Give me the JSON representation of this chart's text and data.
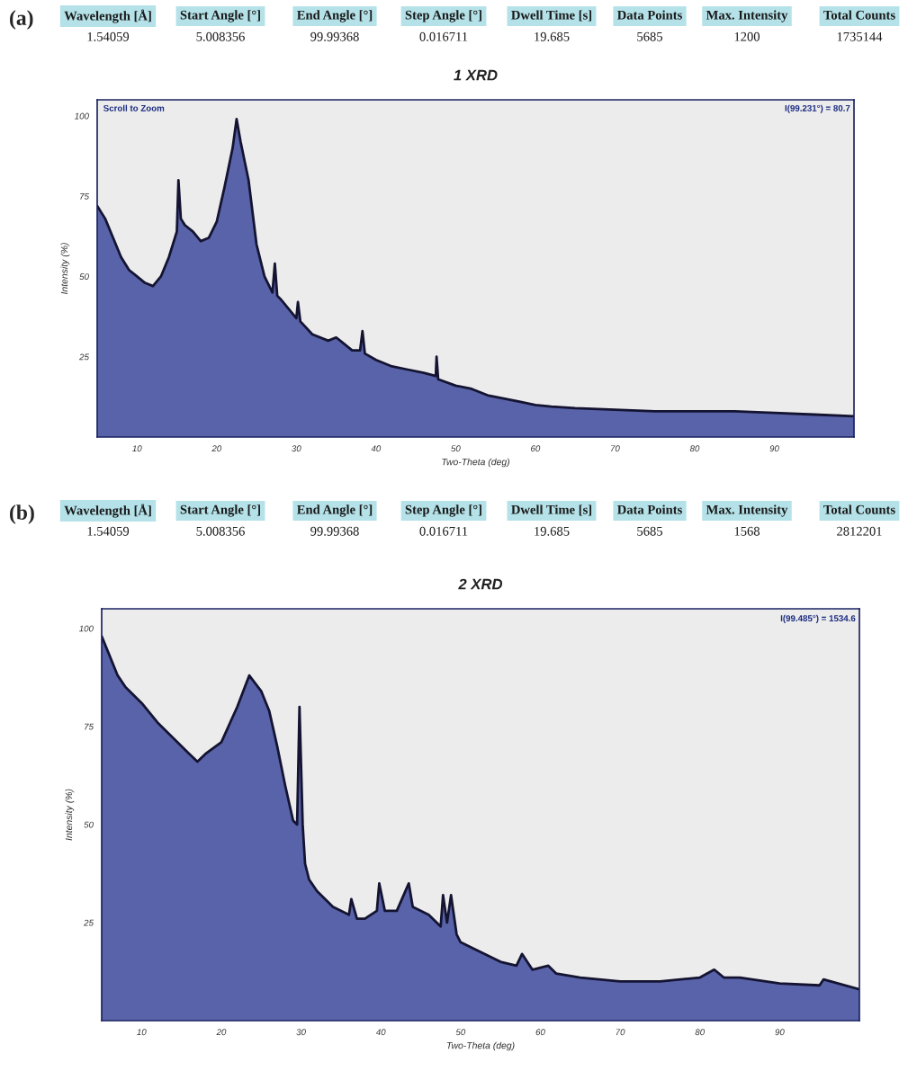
{
  "chart_data": [
    {
      "type": "area",
      "title": "1 XRD",
      "xlabel": "Two-Theta (deg)",
      "ylabel": "Intensity (%)",
      "annotations": [
        "(a)",
        "Wavelength [Å]",
        "Start Angle [°]",
        "End Angle [°]",
        "Step Angle [°]",
        "Dwell Time [s]",
        "Data Points",
        "Max. Intensity",
        "Total Counts",
        "1.54059",
        "5.008356",
        "99.99368",
        "0.016711",
        "19.685",
        "5685",
        "1200",
        "1735144",
        "Scroll to Zoom",
        "I(99.231°) = 80.7"
      ],
      "x": [
        5,
        6,
        7,
        8,
        9,
        10,
        11,
        12,
        13,
        14,
        15,
        15.2,
        15.5,
        16,
        17,
        18,
        19,
        20,
        21,
        22,
        22.5,
        23,
        24,
        25,
        26,
        27,
        27.3,
        27.6,
        28,
        29,
        30,
        30.2,
        30.5,
        32,
        34,
        35,
        36,
        37,
        38,
        38.3,
        38.6,
        40,
        42,
        44,
        46,
        47.5,
        47.6,
        47.8,
        50,
        52,
        54,
        56,
        58,
        60,
        62,
        65,
        70,
        75,
        80,
        85,
        90,
        95,
        100
      ],
      "series": [
        {
          "color": "#283593",
          "values": [
            72,
            68,
            62,
            56,
            52,
            50,
            48,
            47,
            50,
            56,
            64,
            80,
            68,
            66,
            64,
            61,
            62,
            67,
            78,
            90,
            99,
            92,
            80,
            60,
            50,
            45,
            54,
            44,
            43,
            40,
            37,
            42,
            36,
            32,
            30,
            31,
            29,
            27,
            27,
            33,
            26,
            24,
            22,
            21,
            20,
            19,
            25,
            18,
            16,
            15,
            13,
            12,
            11,
            10,
            9.5,
            9,
            8.5,
            8,
            8,
            8,
            7.5,
            7,
            6.5
          ]
        }
      ],
      "xlim": [
        5,
        100
      ],
      "ylim": [
        0,
        105
      ],
      "xticks": [
        10,
        20,
        30,
        40,
        50,
        60,
        70,
        80,
        90
      ],
      "yticks": [
        25,
        50,
        75,
        100
      ],
      "grid": false,
      "legend": false
    },
    {
      "type": "area",
      "title": "2 XRD",
      "xlabel": "Two-Theta (deg)",
      "ylabel": "Intensity (%)",
      "annotations": [
        "(b)",
        "Wavelength [Å]",
        "Start Angle [°]",
        "End Angle [°]",
        "Step Angle [°]",
        "Dwell Time [s]",
        "Data Points",
        "Max. Intensity",
        "Total Counts",
        "1.54059",
        "5.008356",
        "99.99368",
        "0.016711",
        "19.685",
        "5685",
        "1568",
        "2812201",
        "I(99.485°) = 1534.6"
      ],
      "x": [
        5,
        6,
        7,
        8,
        10,
        12,
        14,
        16,
        17,
        18,
        20,
        22,
        23.5,
        25,
        26,
        27,
        28,
        29,
        29.5,
        29.8,
        30.2,
        30.5,
        31,
        32,
        34,
        36,
        36.3,
        37,
        38,
        39.5,
        39.8,
        40.5,
        42,
        43.5,
        44,
        46,
        47.5,
        47.8,
        48.3,
        48.8,
        49.5,
        50,
        52,
        55,
        57,
        57.7,
        59,
        61,
        62,
        65,
        70,
        75,
        80,
        81.8,
        83,
        85,
        90,
        95,
        95.5,
        100
      ],
      "series": [
        {
          "color": "#283593",
          "values": [
            98,
            93,
            88,
            85,
            81,
            76,
            72,
            68,
            66,
            68,
            71,
            80,
            88,
            84,
            79,
            70,
            60,
            51,
            50,
            80,
            50,
            40,
            36,
            33,
            29,
            27,
            31,
            26,
            26,
            28,
            35,
            28,
            28,
            35,
            29,
            27,
            24,
            32,
            25,
            32,
            22,
            20,
            18,
            15,
            14,
            17,
            13,
            14,
            12,
            11,
            10,
            10,
            11,
            13,
            11,
            11,
            9.5,
            9,
            10.5,
            8
          ]
        }
      ],
      "xlim": [
        5,
        100
      ],
      "ylim": [
        0,
        105
      ],
      "xticks": [
        10,
        20,
        30,
        40,
        50,
        60,
        70,
        80,
        90
      ],
      "yticks": [
        25,
        50,
        75,
        100
      ],
      "grid": false,
      "legend": false
    }
  ]
}
